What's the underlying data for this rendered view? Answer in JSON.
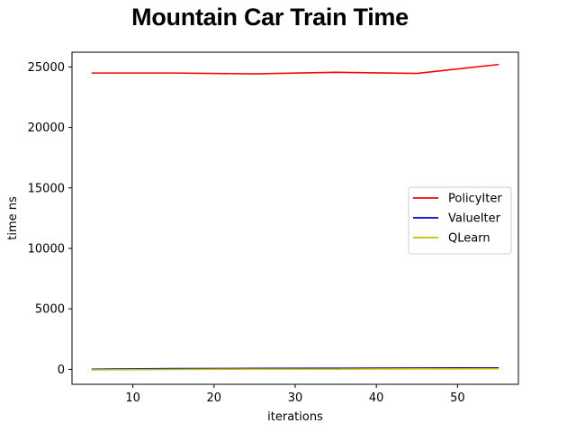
{
  "chart_data": {
    "type": "line",
    "title": "Mountain Car Train Time",
    "xlabel": "iterations",
    "ylabel": "time ns",
    "x": [
      5,
      15,
      25,
      35,
      45,
      55
    ],
    "xlim": [
      2.5,
      57.5
    ],
    "ylim": [
      -1236,
      26220
    ],
    "xticks": [
      10,
      20,
      30,
      40,
      50
    ],
    "yticks": [
      0,
      5000,
      10000,
      15000,
      20000,
      25000
    ],
    "grid": false,
    "legend_position": "center-right",
    "series": [
      {
        "name": "PolicyIter",
        "color": "#ff0000",
        "values": [
          24500,
          24500,
          24430,
          24560,
          24470,
          25200
        ]
      },
      {
        "name": "ValueIter",
        "color": "#0000cc",
        "values": [
          10,
          60,
          80,
          90,
          110,
          120
        ]
      },
      {
        "name": "QLearn",
        "color": "#bfbf00",
        "values": [
          -40,
          0,
          20,
          20,
          40,
          50
        ]
      }
    ]
  }
}
